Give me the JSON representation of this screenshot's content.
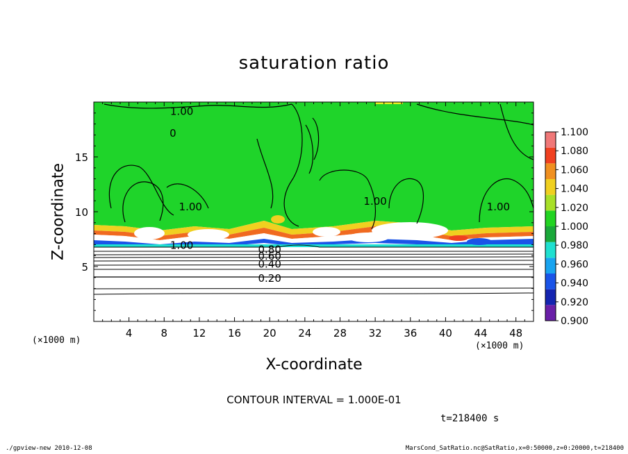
{
  "chart_data": {
    "type": "heatmap",
    "title": "saturation ratio",
    "xlabel": "X-coordinate",
    "ylabel": "Z-coordinate",
    "x_unit": "(×1000 m)",
    "x_unit_right": "(×1000 m)",
    "xlim": [
      0,
      50
    ],
    "ylim": [
      0,
      20
    ],
    "x_ticks": [
      4,
      8,
      12,
      16,
      20,
      24,
      28,
      32,
      36,
      40,
      44,
      48
    ],
    "x_tick_labels": [
      "4",
      "8",
      "12",
      "16",
      "20",
      "24",
      "28",
      "32",
      "36",
      "40",
      "44",
      "48"
    ],
    "y_ticks": [
      5,
      10,
      15
    ],
    "y_tick_labels": [
      "5",
      "10",
      "15"
    ],
    "colorbar": {
      "levels": [
        0.9,
        0.92,
        0.94,
        0.96,
        0.98,
        1.0,
        1.02,
        1.04,
        1.06,
        1.08,
        1.1
      ],
      "labels": [
        "0.900",
        "0.920",
        "0.940",
        "0.960",
        "0.980",
        "1.000",
        "1.020",
        "1.040",
        "1.060",
        "1.080",
        "1.100"
      ],
      "colors": [
        "#6a1fa8",
        "#1424b0",
        "#1a54e8",
        "#19a4f0",
        "#1fe0d0",
        "#1aa83a",
        "#22d422",
        "#a8e028",
        "#f0d020",
        "#f09020",
        "#f04020",
        "#f07878"
      ]
    },
    "contour_labels": [
      {
        "text": "0.20",
        "x": 20,
        "z": 4.0
      },
      {
        "text": "0.40",
        "x": 20,
        "z": 5.3
      },
      {
        "text": "0.60",
        "x": 20,
        "z": 6.0
      },
      {
        "text": "0.80",
        "x": 20,
        "z": 6.6
      },
      {
        "text": "1.00",
        "x": 10,
        "z": 7.0
      },
      {
        "text": "1.00",
        "x": 32,
        "z": 11.0
      },
      {
        "text": "1.00",
        "x": 46,
        "z": 10.5
      },
      {
        "text": "1.00",
        "x": 10,
        "z": 19.2
      },
      {
        "text": "1.00",
        "x": 11,
        "z": 10.5
      },
      {
        "text": "0",
        "x": 9,
        "z": 17.2
      }
    ],
    "contour_interval": "CONTOUR INTERVAL = 1.000E-01",
    "time": "t=218400 s"
  },
  "footer": {
    "left": "./gpview-new  2010-12-08",
    "right": "MarsCond_SatRatio.nc@SatRatio,x=0:50000,z=0:20000,t=218400"
  }
}
